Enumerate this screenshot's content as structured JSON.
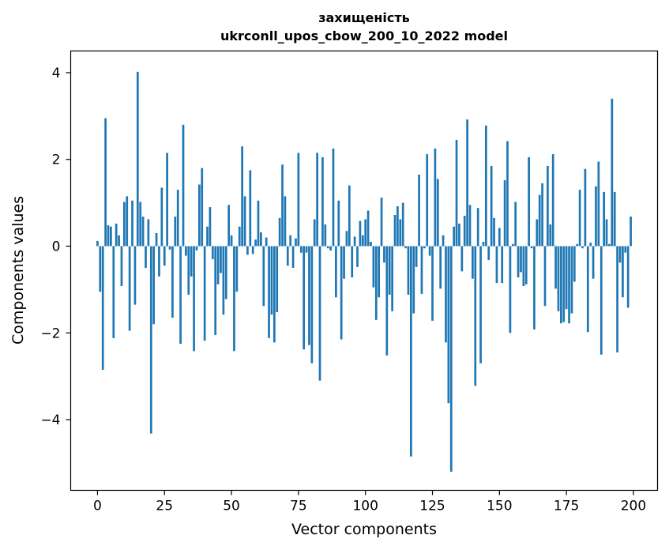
{
  "chart_data": {
    "type": "bar",
    "title_line1": "захищеність",
    "title_line2": "ukrconll_upos_cbow_200_10_2022 model",
    "xlabel": "Vector components",
    "ylabel": "Components values",
    "xlim": [
      -10,
      209
    ],
    "ylim": [
      -5.63,
      4.5
    ],
    "xticks": [
      0,
      25,
      50,
      75,
      100,
      125,
      150,
      175,
      200
    ],
    "yticks": [
      4,
      2,
      0,
      -2,
      -4
    ],
    "ytick_labels": [
      "4",
      "2",
      "0",
      "−2",
      "−4"
    ],
    "bar_color": "#1f77b4",
    "grid": false,
    "x": [
      0,
      1,
      2,
      3,
      4,
      5,
      6,
      7,
      8,
      9,
      10,
      11,
      12,
      13,
      14,
      15,
      16,
      17,
      18,
      19,
      20,
      21,
      22,
      23,
      24,
      25,
      26,
      27,
      28,
      29,
      30,
      31,
      32,
      33,
      34,
      35,
      36,
      37,
      38,
      39,
      40,
      41,
      42,
      43,
      44,
      45,
      46,
      47,
      48,
      49,
      50,
      51,
      52,
      53,
      54,
      55,
      56,
      57,
      58,
      59,
      60,
      61,
      62,
      63,
      64,
      65,
      66,
      67,
      68,
      69,
      70,
      71,
      72,
      73,
      74,
      75,
      76,
      77,
      78,
      79,
      80,
      81,
      82,
      83,
      84,
      85,
      86,
      87,
      88,
      89,
      90,
      91,
      92,
      93,
      94,
      95,
      96,
      97,
      98,
      99,
      100,
      101,
      102,
      103,
      104,
      105,
      106,
      107,
      108,
      109,
      110,
      111,
      112,
      113,
      114,
      115,
      116,
      117,
      118,
      119,
      120,
      121,
      122,
      123,
      124,
      125,
      126,
      127,
      128,
      129,
      130,
      131,
      132,
      133,
      134,
      135,
      136,
      137,
      138,
      139,
      140,
      141,
      142,
      143,
      144,
      145,
      146,
      147,
      148,
      149,
      150,
      151,
      152,
      153,
      154,
      155,
      156,
      157,
      158,
      159,
      160,
      161,
      162,
      163,
      164,
      165,
      166,
      167,
      168,
      169,
      170,
      171,
      172,
      173,
      174,
      175,
      176,
      177,
      178,
      179,
      180,
      181,
      182,
      183,
      184,
      185,
      186,
      187,
      188,
      189,
      190,
      191,
      192,
      193,
      194,
      195,
      196,
      197,
      198,
      199
    ],
    "values": [
      0.12,
      -1.05,
      -2.85,
      2.95,
      0.48,
      0.45,
      -2.12,
      0.52,
      0.25,
      -0.92,
      1.02,
      1.15,
      -1.95,
      1.05,
      -1.35,
      4.02,
      1.02,
      0.68,
      -0.5,
      0.62,
      -4.32,
      -1.8,
      0.3,
      -0.7,
      1.35,
      -0.45,
      2.15,
      -0.08,
      -1.65,
      0.68,
      1.3,
      -2.25,
      2.8,
      -0.22,
      -1.12,
      -0.7,
      -2.42,
      -0.1,
      1.42,
      1.8,
      -2.18,
      0.45,
      0.9,
      -0.3,
      -2.05,
      -0.88,
      -0.62,
      -1.58,
      -1.22,
      0.95,
      0.25,
      -2.42,
      -1.05,
      0.45,
      2.3,
      1.15,
      -0.2,
      1.75,
      -0.18,
      0.15,
      1.05,
      0.32,
      -1.38,
      0.2,
      -2.12,
      -1.58,
      -2.22,
      -1.52,
      0.65,
      1.88,
      1.15,
      -0.45,
      0.25,
      -0.5,
      0.18,
      2.15,
      -0.15,
      -2.38,
      -0.15,
      -2.28,
      -2.7,
      0.62,
      2.15,
      -3.1,
      2.05,
      0.5,
      -0.05,
      -0.1,
      2.25,
      -1.18,
      1.05,
      -2.15,
      -0.75,
      0.35,
      1.4,
      -0.72,
      0.22,
      -0.48,
      0.58,
      0.25,
      0.62,
      0.82,
      0.1,
      -0.95,
      -1.7,
      -1.18,
      1.12,
      -0.38,
      -2.52,
      -1.12,
      -1.5,
      0.72,
      0.92,
      0.62,
      1.0,
      -0.05,
      -1.12,
      -4.85,
      -1.55,
      -0.48,
      1.65,
      -1.1,
      -0.05,
      2.12,
      -0.22,
      -1.72,
      2.25,
      1.55,
      -0.98,
      0.25,
      -2.22,
      -3.62,
      -5.2,
      0.45,
      2.45,
      0.52,
      -0.58,
      0.7,
      2.92,
      0.95,
      -0.75,
      -3.22,
      0.88,
      -2.7,
      0.1,
      2.78,
      -0.32,
      1.85,
      0.65,
      -0.85,
      0.42,
      -0.85,
      1.52,
      2.42,
      -2.0,
      0.05,
      1.02,
      -0.72,
      -0.6,
      -0.92,
      -0.88,
      2.05,
      -0.05,
      -1.92,
      0.62,
      1.18,
      1.45,
      -1.38,
      1.85,
      0.5,
      2.12,
      -0.98,
      -1.5,
      -1.78,
      -1.75,
      -1.45,
      -1.78,
      -1.55,
      -0.82,
      0.05,
      1.3,
      -0.05,
      1.78,
      -1.98,
      0.08,
      -0.75,
      1.38,
      1.95,
      -2.5,
      1.25,
      0.62,
      0.05,
      3.4,
      1.25,
      -2.45,
      -0.38,
      -1.18,
      -0.15,
      -1.42,
      0.68
    ]
  }
}
